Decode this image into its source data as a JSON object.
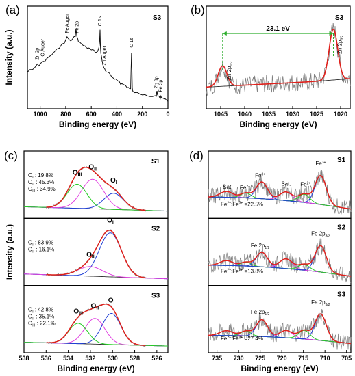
{
  "chart_data": [
    {
      "id": "a",
      "type": "line",
      "panel_label": "(a)",
      "sample": "S3",
      "xlabel": "Binding energy (eV)",
      "ylabel": "Intensity (a.u.)",
      "xlim": [
        1100,
        0
      ],
      "xticks": [
        1000,
        800,
        600,
        400,
        200,
        0
      ],
      "ylim": [
        0,
        1
      ],
      "series": [
        {
          "x": [
            1100,
            1080,
            1060,
            1040,
            1022,
            1010,
            990,
            975,
            965,
            950,
            930,
            910,
            890,
            870,
            850,
            830,
            810,
            790,
            775,
            760,
            745,
            735,
            725,
            720,
            712,
            705,
            700,
            690,
            680,
            670,
            660,
            650,
            640,
            630,
            620,
            610,
            600,
            590,
            580,
            570,
            560,
            550,
            540,
            535,
            531,
            528,
            525,
            520,
            515,
            510,
            505,
            500,
            495,
            490,
            480,
            470,
            460,
            450,
            440,
            430,
            420,
            410,
            400,
            390,
            380,
            370,
            360,
            350,
            340,
            330,
            320,
            310,
            300,
            292,
            288,
            285,
            282,
            279,
            275,
            270,
            260,
            240,
            220,
            200,
            180,
            160,
            140,
            120,
            100,
            90,
            88,
            85,
            82,
            75,
            70,
            60,
            55,
            50,
            40,
            30,
            20,
            10,
            0
          ],
          "y": [
            0.35,
            0.38,
            0.37,
            0.4,
            0.44,
            0.42,
            0.45,
            0.48,
            0.47,
            0.5,
            0.52,
            0.55,
            0.58,
            0.6,
            0.62,
            0.66,
            0.68,
            0.74,
            0.72,
            0.7,
            0.72,
            0.74,
            0.76,
            0.85,
            0.74,
            0.72,
            0.7,
            0.68,
            0.67,
            0.66,
            0.65,
            0.64,
            0.62,
            0.63,
            0.62,
            0.61,
            0.6,
            0.6,
            0.59,
            0.58,
            0.57,
            0.58,
            0.62,
            0.7,
            0.82,
            0.64,
            0.56,
            0.52,
            0.48,
            0.44,
            0.42,
            0.4,
            0.38,
            0.36,
            0.35,
            0.34,
            0.33,
            0.32,
            0.3,
            0.29,
            0.28,
            0.27,
            0.26,
            0.25,
            0.24,
            0.22,
            0.22,
            0.21,
            0.2,
            0.19,
            0.18,
            0.17,
            0.16,
            0.17,
            0.4,
            0.58,
            0.42,
            0.18,
            0.14,
            0.13,
            0.12,
            0.11,
            0.1,
            0.09,
            0.09,
            0.08,
            0.08,
            0.08,
            0.08,
            0.09,
            0.12,
            0.13,
            0.1,
            0.08,
            0.07,
            0.06,
            0.08,
            0.07,
            0.06,
            0.05,
            0.04,
            0.04,
            0.03
          ]
        }
      ],
      "annotations": [
        {
          "text": "Zn 2p",
          "x": 1022
        },
        {
          "text": "O Auger",
          "x": 980
        },
        {
          "text": "Fe Auger",
          "x": 790
        },
        {
          "text": "Fe 2p",
          "x": 712
        },
        {
          "text": "O 1s",
          "x": 531
        },
        {
          "text": "Zn Auger",
          "x": 495
        },
        {
          "text": "C 1s",
          "x": 285
        },
        {
          "text": "Zn 3p",
          "x": 88
        },
        {
          "text": "Fe 3p",
          "x": 55
        }
      ]
    },
    {
      "id": "b",
      "type": "line",
      "panel_label": "(b)",
      "sample": "S3",
      "xlabel": "Binding energy (eV)",
      "ylabel": "",
      "xlim": [
        1048,
        1018
      ],
      "xticks": [
        1045,
        1040,
        1035,
        1030,
        1025,
        1020
      ],
      "ylim": [
        0,
        1
      ],
      "gap_label": "23.1 eV",
      "peaks": [
        {
          "text": "Zn 2p",
          "sub": "1/2",
          "x": 1044.6
        },
        {
          "text": "Zn 2p",
          "sub": "3/2",
          "x": 1021.5
        }
      ],
      "fit": {
        "background_start": 0.18,
        "background_end": 0.27,
        "peak1": {
          "center": 1044.6,
          "amp": 0.25,
          "sigma": 0.9
        },
        "peak2": {
          "center": 1021.5,
          "amp": 0.62,
          "sigma": 0.9
        }
      }
    },
    {
      "id": "c",
      "type": "line",
      "panel_label": "(c)",
      "xlabel": "Binding energy (eV)",
      "ylabel": "Intensity (a.u.)",
      "xlim": [
        538,
        525
      ],
      "xticks": [
        538,
        536,
        534,
        532,
        530,
        528,
        526
      ],
      "subplots": [
        {
          "sample": "S1",
          "labels": [
            "O : 19.8%",
            "O : 45.3%",
            "O : 34.9%"
          ],
          "subs": [
            "I",
            "II",
            "III"
          ],
          "components": [
            {
              "name": "O",
              "sub": "I",
              "center": 529.9,
              "amp": 0.3,
              "sigma": 0.9,
              "color": "#1f3fd6"
            },
            {
              "name": "O",
              "sub": "II",
              "center": 531.8,
              "amp": 0.55,
              "sigma": 1.0,
              "color": "#e040e0"
            },
            {
              "name": "O",
              "sub": "III",
              "center": 533.2,
              "amp": 0.45,
              "sigma": 0.9,
              "color": "#22cc22"
            }
          ],
          "baseline": [
            0.06,
            0.14
          ]
        },
        {
          "sample": "S2",
          "labels": [
            "O : 83.9%",
            "O : 16.1%"
          ],
          "subs": [
            "I",
            "II"
          ],
          "components": [
            {
              "name": "O",
              "sub": "I",
              "center": 530.2,
              "amp": 0.82,
              "sigma": 1.0,
              "color": "#1f3fd6"
            },
            {
              "name": "O",
              "sub": "II",
              "center": 532.0,
              "amp": 0.18,
              "sigma": 1.1,
              "color": "#e040e0"
            }
          ],
          "baseline": [
            0.05,
            0.14
          ]
        },
        {
          "sample": "S3",
          "labels": [
            "O : 42.8%",
            "O : 35.1%",
            "O : 22.1%"
          ],
          "subs": [
            "I",
            "II",
            "III"
          ],
          "components": [
            {
              "name": "O",
              "sub": "I",
              "center": 530.1,
              "amp": 0.58,
              "sigma": 0.85,
              "color": "#1f3fd6"
            },
            {
              "name": "O",
              "sub": "II",
              "center": 531.6,
              "amp": 0.48,
              "sigma": 0.9,
              "color": "#e040e0"
            },
            {
              "name": "O",
              "sub": "III",
              "center": 533.1,
              "amp": 0.38,
              "sigma": 0.85,
              "color": "#22cc22"
            }
          ],
          "baseline": [
            0.05,
            0.12
          ]
        }
      ]
    },
    {
      "id": "d",
      "type": "line",
      "panel_label": "(d)",
      "xlabel": "Binding energy (eV)",
      "ylabel": "",
      "xlim": [
        737,
        704
      ],
      "xticks": [
        735,
        730,
        725,
        720,
        715,
        710,
        705
      ],
      "subplots": [
        {
          "sample": "S1",
          "ratio": "Fe :Fe =22.5%",
          "peaks": [
            {
              "text": "Sat.",
              "x": 732.5
            },
            {
              "text": "Fe",
              "sup": "2+",
              "x": 728.5
            },
            {
              "text": "Fe",
              "sup": "3+",
              "x": 725
            },
            {
              "text": "Sat.",
              "x": 719
            },
            {
              "text": "Fe",
              "sup": "2+",
              "x": 714.5
            },
            {
              "text": "Fe",
              "sup": "3+",
              "x": 711
            }
          ],
          "components": [
            {
              "center": 732.8,
              "amp": 0.12,
              "sigma": 1.5,
              "color": "#e040e0"
            },
            {
              "center": 728.3,
              "amp": 0.1,
              "sigma": 1.2,
              "color": "#22cc22"
            },
            {
              "center": 724.6,
              "amp": 0.35,
              "sigma": 1.3,
              "color": "#1f3fd6"
            },
            {
              "center": 719.0,
              "amp": 0.18,
              "sigma": 1.5,
              "color": "#e040e0"
            },
            {
              "center": 714.8,
              "amp": 0.17,
              "sigma": 1.3,
              "color": "#22cc22"
            },
            {
              "center": 711.0,
              "amp": 0.6,
              "sigma": 1.3,
              "color": "#1f3fd6"
            }
          ],
          "baseline": [
            0.3,
            0.05
          ]
        },
        {
          "sample": "S2",
          "ratio": "Fe :Fe =13.8%",
          "peaks": [
            {
              "text": "Fe 2p",
              "sub": "1/2",
              "x": 725
            },
            {
              "text": "Fe 2p",
              "sub": "3/2",
              "x": 711
            }
          ],
          "components": [
            {
              "center": 732.8,
              "amp": 0.1,
              "sigma": 1.5,
              "color": "#e040e0"
            },
            {
              "center": 728.3,
              "amp": 0.08,
              "sigma": 1.2,
              "color": "#22cc22"
            },
            {
              "center": 724.6,
              "amp": 0.3,
              "sigma": 1.3,
              "color": "#1f3fd6"
            },
            {
              "center": 719.0,
              "amp": 0.2,
              "sigma": 1.5,
              "color": "#e040e0"
            },
            {
              "center": 714.8,
              "amp": 0.12,
              "sigma": 1.3,
              "color": "#22cc22"
            },
            {
              "center": 711.0,
              "amp": 0.55,
              "sigma": 1.3,
              "color": "#1f3fd6"
            }
          ],
          "baseline": [
            0.28,
            0.05
          ]
        },
        {
          "sample": "S3",
          "ratio": "Fe :Fe =27.4%",
          "peaks": [
            {
              "text": "Fe 2p",
              "sub": "1/2",
              "x": 725
            },
            {
              "text": "Fe 2p",
              "sub": "3/2",
              "x": 711
            }
          ],
          "components": [
            {
              "center": 732.8,
              "amp": 0.1,
              "sigma": 1.5,
              "color": "#e040e0"
            },
            {
              "center": 728.3,
              "amp": 0.1,
              "sigma": 1.2,
              "color": "#22cc22"
            },
            {
              "center": 724.6,
              "amp": 0.35,
              "sigma": 1.3,
              "color": "#1f3fd6"
            },
            {
              "center": 719.0,
              "amp": 0.15,
              "sigma": 1.5,
              "color": "#e040e0"
            },
            {
              "center": 714.8,
              "amp": 0.18,
              "sigma": 1.3,
              "color": "#22cc22"
            },
            {
              "center": 711.0,
              "amp": 0.55,
              "sigma": 1.3,
              "color": "#1f3fd6"
            }
          ],
          "baseline": [
            0.22,
            0.05
          ]
        }
      ]
    }
  ],
  "colors": {
    "fit": "#e0201b",
    "raw": "#808080",
    "background": "#333333",
    "blue": "#1f3fd6",
    "magenta": "#e040e0",
    "green": "#22cc22",
    "gap_line": "#2fae2f"
  }
}
